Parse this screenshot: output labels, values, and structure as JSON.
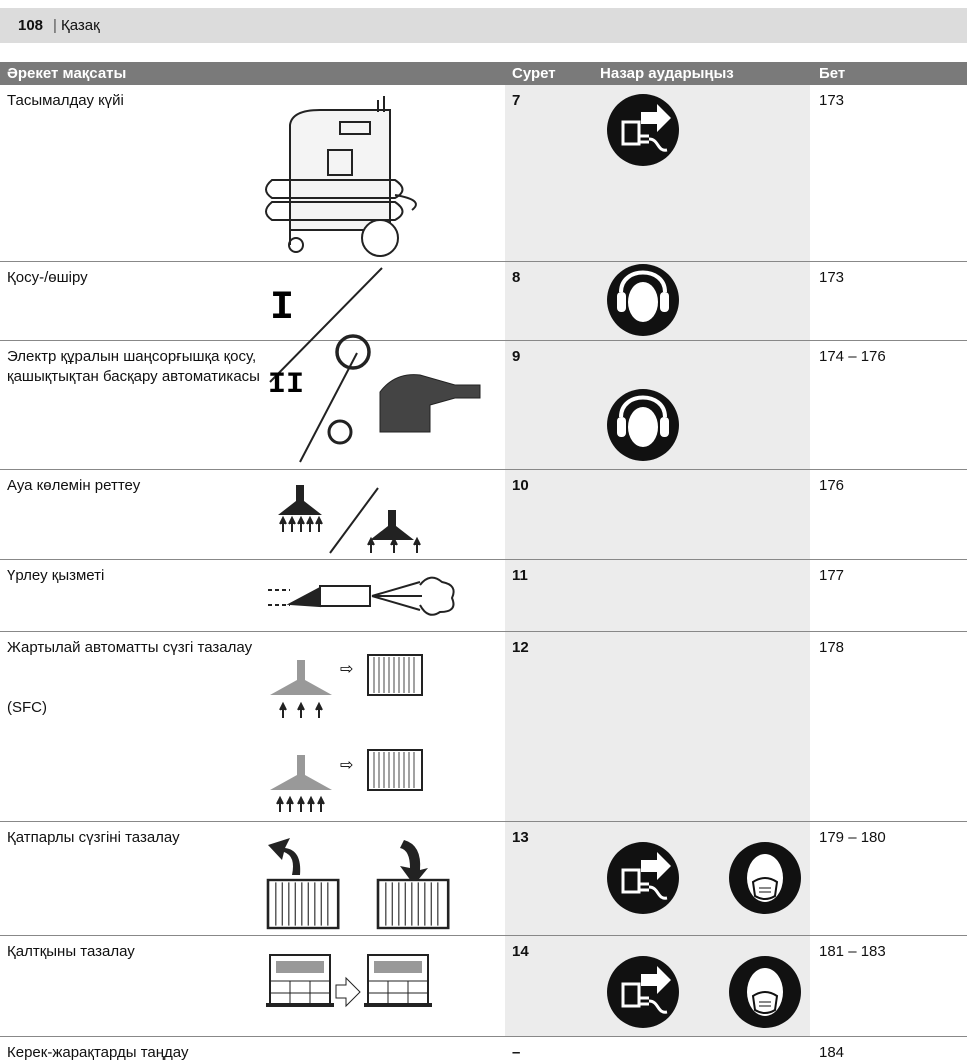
{
  "header": {
    "page": "108",
    "separator": "|",
    "language": "Қазақ"
  },
  "table": {
    "columns": [
      "Әрекет мақсаты",
      "Сурет",
      "Назар аударыңыз",
      "Бет"
    ],
    "rows": [
      {
        "purpose": "Тасымалдау күйі",
        "figure": "7",
        "page": "173"
      },
      {
        "purpose": "Қосу-/өшіру",
        "figure": "8",
        "page": "173"
      },
      {
        "purpose": "Электр құралын шаңсорғышқа қосу, қашықтықтан басқару автоматикасы",
        "figure": "9",
        "page": "174 – 176"
      },
      {
        "purpose": "Ауа көлемін реттеу",
        "figure": "10",
        "page": "176"
      },
      {
        "purpose": "Үрлеу қызметі",
        "figure": "11",
        "page": "177"
      },
      {
        "purpose": "Жартылай автоматты сүзгі тазалау",
        "note": "(SFC)",
        "figure": "12",
        "page": "178"
      },
      {
        "purpose": "Қатпарлы сүзгіні тазалау",
        "figure": "13",
        "page": "179 – 180"
      },
      {
        "purpose": "Қалтқыны тазалау",
        "figure": "14",
        "page": "181 – 183"
      },
      {
        "purpose": "Керек-жарақтарды таңдау",
        "figure": "–",
        "page": "184"
      }
    ]
  }
}
